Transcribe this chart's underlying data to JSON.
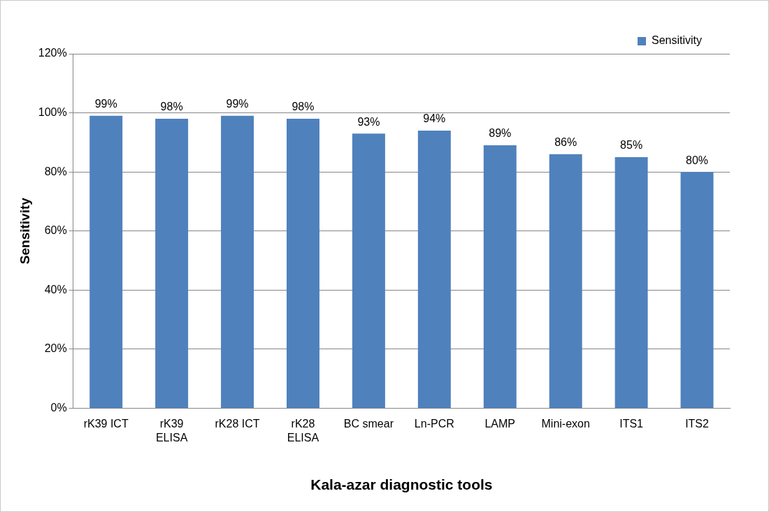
{
  "chart_data": {
    "type": "bar",
    "xlabel": "Kala-azar diagnostic tools",
    "ylabel": "Sensitivity",
    "categories": [
      "rK39 ICT",
      "rK39 ELISA",
      "rK28 ICT",
      "rK28 ELISA",
      "BC smear",
      "Ln-PCR",
      "LAMP",
      "Mini-exon",
      "ITS1",
      "ITS2"
    ],
    "series": [
      {
        "name": "Sensitivity",
        "color": "#4f81bd",
        "values": [
          99,
          98,
          99,
          98,
          93,
          94,
          89,
          86,
          85,
          80
        ]
      }
    ],
    "value_labels": [
      "99%",
      "98%",
      "99%",
      "98%",
      "93%",
      "94%",
      "89%",
      "86%",
      "85%",
      "80%"
    ],
    "ylim": [
      0,
      120
    ],
    "yticks": [
      {
        "value": 0,
        "label": "0%"
      },
      {
        "value": 20,
        "label": "20%"
      },
      {
        "value": 40,
        "label": "40%"
      },
      {
        "value": 60,
        "label": "60%"
      },
      {
        "value": 80,
        "label": "80%"
      },
      {
        "value": 100,
        "label": "100%"
      },
      {
        "value": 120,
        "label": "120%"
      }
    ],
    "grid": "y",
    "legend": "top right"
  }
}
